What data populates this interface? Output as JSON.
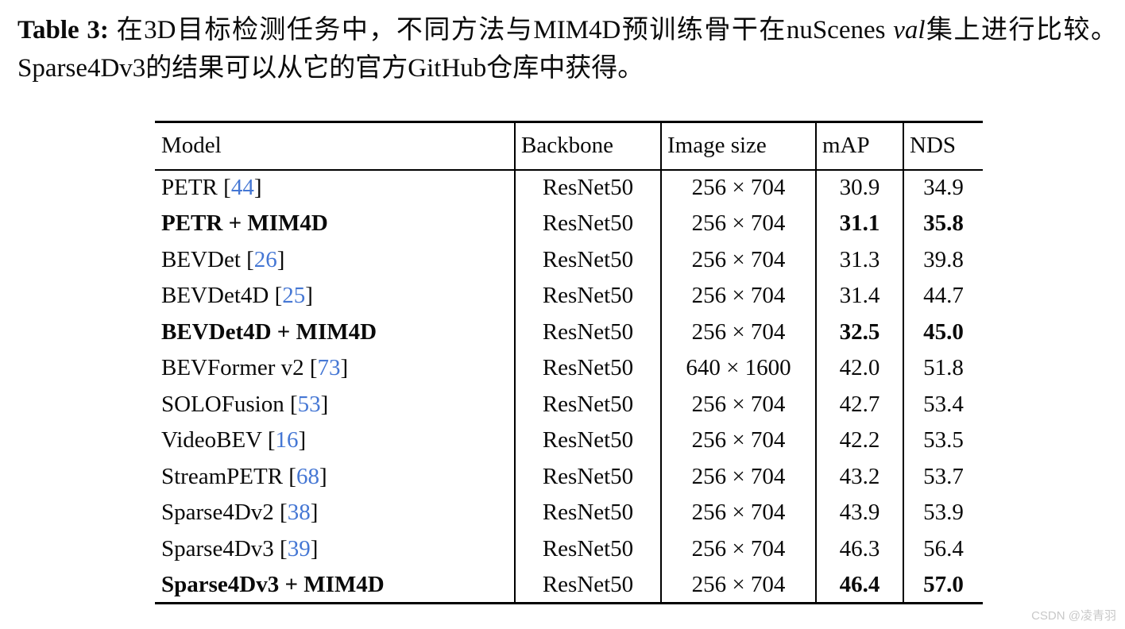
{
  "caption": {
    "label": "Table 3:",
    "text_before_val": " 在3D目标检测任务中，不同方法与MIM4D预训练骨干在nuScenes ",
    "italic_word": "val",
    "text_after_val": "集上进行比较。Sparse4Dv3的结果可以从它的官方GitHub仓库中获得。"
  },
  "table": {
    "headers": [
      "Model",
      "Backbone",
      "Image size",
      "mAP",
      "NDS"
    ],
    "rows": [
      {
        "model": "PETR",
        "citation": "44",
        "bold": false,
        "backbone": "ResNet50",
        "image_size": "256 × 704",
        "map": "30.9",
        "nds": "34.9"
      },
      {
        "model": "PETR + MIM4D",
        "citation": null,
        "bold": true,
        "backbone": "ResNet50",
        "image_size": "256 × 704",
        "map": "31.1",
        "nds": "35.8"
      },
      {
        "model": "BEVDet",
        "citation": "26",
        "bold": false,
        "backbone": "ResNet50",
        "image_size": "256 × 704",
        "map": "31.3",
        "nds": "39.8"
      },
      {
        "model": "BEVDet4D",
        "citation": "25",
        "bold": false,
        "backbone": "ResNet50",
        "image_size": "256 × 704",
        "map": "31.4",
        "nds": "44.7"
      },
      {
        "model": "BEVDet4D + MIM4D",
        "citation": null,
        "bold": true,
        "backbone": "ResNet50",
        "image_size": "256 × 704",
        "map": "32.5",
        "nds": "45.0"
      },
      {
        "model": "BEVFormer v2",
        "citation": "73",
        "bold": false,
        "backbone": "ResNet50",
        "image_size": "640 × 1600",
        "map": "42.0",
        "nds": "51.8"
      },
      {
        "model": "SOLOFusion",
        "citation": "53",
        "bold": false,
        "backbone": "ResNet50",
        "image_size": "256 × 704",
        "map": "42.7",
        "nds": "53.4"
      },
      {
        "model": "VideoBEV",
        "citation": "16",
        "bold": false,
        "backbone": "ResNet50",
        "image_size": "256 × 704",
        "map": "42.2",
        "nds": "53.5"
      },
      {
        "model": "StreamPETR",
        "citation": "68",
        "bold": false,
        "backbone": "ResNet50",
        "image_size": "256 × 704",
        "map": "43.2",
        "nds": "53.7"
      },
      {
        "model": "Sparse4Dv2",
        "citation": "38",
        "bold": false,
        "backbone": "ResNet50",
        "image_size": "256 × 704",
        "map": "43.9",
        "nds": "53.9"
      },
      {
        "model": "Sparse4Dv3",
        "citation": "39",
        "bold": false,
        "backbone": "ResNet50",
        "image_size": "256 × 704",
        "map": "46.3",
        "nds": "56.4"
      },
      {
        "model": "Sparse4Dv3 + MIM4D",
        "citation": null,
        "bold": true,
        "backbone": "ResNet50",
        "image_size": "256 × 704",
        "map": "46.4",
        "nds": "57.0"
      }
    ]
  },
  "watermark": "CSDN @凌青羽",
  "colors": {
    "citation_blue": "#4577d4",
    "watermark_gray": "#c8c8c8"
  }
}
